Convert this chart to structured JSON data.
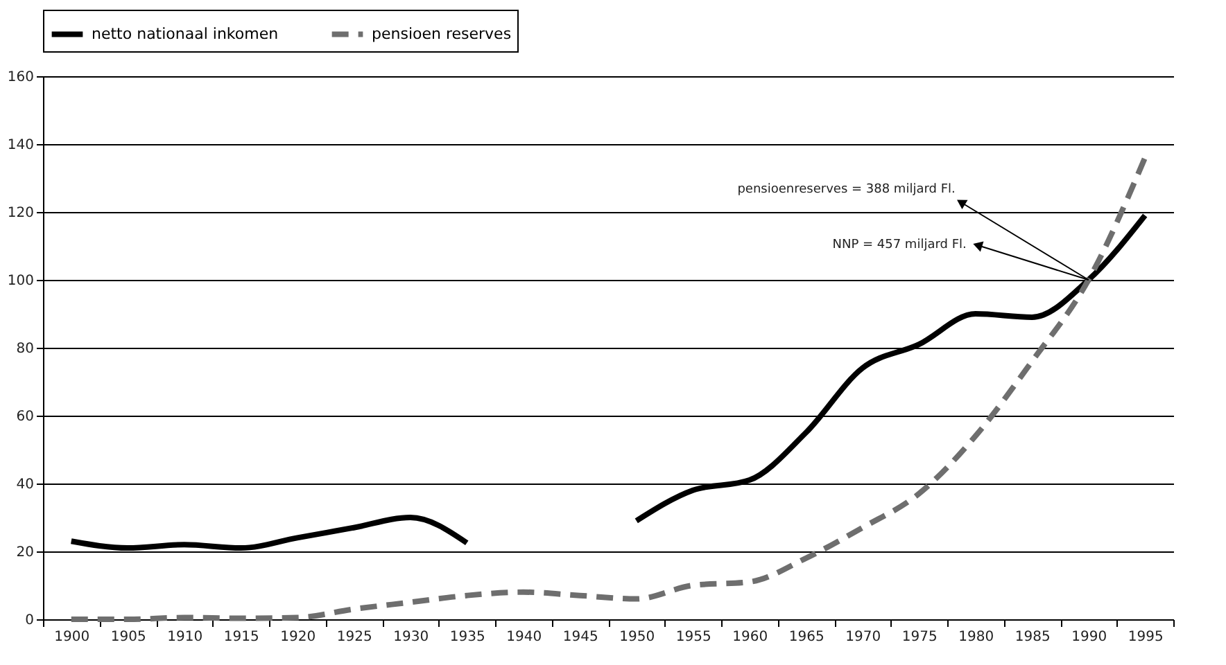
{
  "chart_data": {
    "type": "line",
    "categories": [
      "1900",
      "1905",
      "1910",
      "1915",
      "1920",
      "1925",
      "1930",
      "1935",
      "1940",
      "1945",
      "1950",
      "1955",
      "1960",
      "1965",
      "1970",
      "1975",
      "1980",
      "1985",
      "1990",
      "1995"
    ],
    "series": [
      {
        "name": "netto nationaal inkomen",
        "color": "#000000",
        "line_style": "solid",
        "values": [
          23,
          21,
          22,
          21,
          24,
          27,
          30,
          22.5,
          null,
          null,
          29,
          38,
          41,
          55,
          74,
          81,
          90,
          89,
          100,
          119
        ]
      },
      {
        "name": "pensioen reserves",
        "color": "#6e6e6e",
        "line_style": "dashed",
        "values": [
          0,
          0,
          0.5,
          0.3,
          0.5,
          3,
          5,
          7,
          8,
          7,
          6,
          10,
          11,
          18,
          27,
          37,
          54,
          76,
          100,
          136
        ]
      }
    ],
    "ylim": [
      0,
      160
    ],
    "yticks": [
      0,
      20,
      40,
      60,
      80,
      100,
      120,
      140,
      160
    ],
    "grid": "y",
    "legend": "top",
    "marker": "none",
    "annotations": [
      {
        "text": "pensioenreserves = 388 miljard Fl.",
        "x": "1990",
        "y": 100
      },
      {
        "text": "NNP = 457 miljard Fl.",
        "x": "1990",
        "y": 100
      }
    ]
  }
}
